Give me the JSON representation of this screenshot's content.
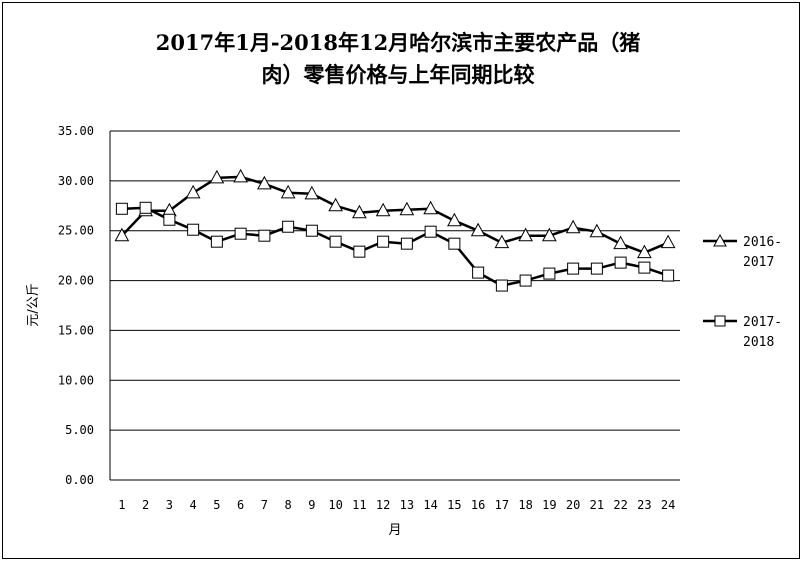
{
  "chart_data": {
    "type": "line",
    "title_line1": "2017年1月-2018年12月哈尔滨市主要农产品（猪",
    "title_line2": "肉）零售价格与上年同期比较",
    "xlabel": "月",
    "ylabel": "元/公斤",
    "ylim": [
      0,
      35
    ],
    "y_ticks": [
      "0.00",
      "5.00",
      "10.00",
      "15.00",
      "20.00",
      "25.00",
      "30.00",
      "35.00"
    ],
    "categories": [
      "1",
      "2",
      "3",
      "4",
      "5",
      "6",
      "7",
      "8",
      "9",
      "10",
      "11",
      "12",
      "13",
      "14",
      "15",
      "16",
      "17",
      "18",
      "19",
      "20",
      "21",
      "22",
      "23",
      "24"
    ],
    "grid": true,
    "legend_position": "right",
    "series": [
      {
        "name_line1": "2016-",
        "name_line2": "2017",
        "marker": "triangle",
        "values": [
          24.5,
          27.0,
          27.0,
          28.8,
          30.3,
          30.4,
          29.7,
          28.8,
          28.7,
          27.5,
          26.8,
          27.0,
          27.1,
          27.2,
          26.0,
          25.0,
          23.8,
          24.5,
          24.5,
          25.3,
          24.9,
          23.7,
          22.8,
          23.8
        ]
      },
      {
        "name_line1": "2017-",
        "name_line2": "2018",
        "marker": "square",
        "values": [
          27.2,
          27.3,
          26.1,
          25.1,
          23.9,
          24.7,
          24.5,
          25.4,
          25.0,
          23.9,
          22.9,
          23.9,
          23.7,
          24.9,
          23.7,
          20.8,
          19.5,
          20.0,
          20.7,
          21.2,
          21.2,
          21.8,
          21.3,
          20.5
        ]
      }
    ]
  }
}
